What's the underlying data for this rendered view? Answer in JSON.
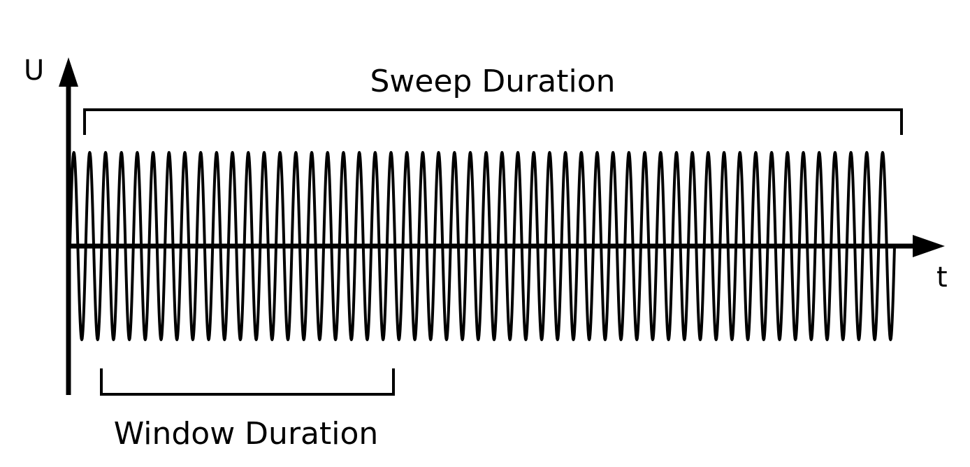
{
  "labels": {
    "y_axis": "U",
    "x_axis": "t",
    "sweep": "Sweep Duration",
    "window": "Window Duration"
  },
  "wave": {
    "cycles": 52
  },
  "colors": {
    "stroke": "#000000",
    "background": "#ffffff"
  }
}
